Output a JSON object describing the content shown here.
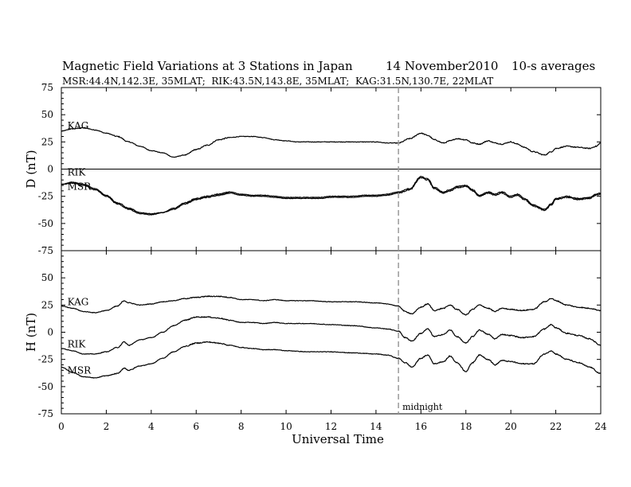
{
  "chart_data": {
    "type": "line",
    "title": "Magnetic Field Variations at 3 Stations in Japan",
    "date": "14 November2010",
    "averaging": "10-s averages",
    "subtitle": "MSR:44.4N,142.3E, 35MLAT;  RIK:43.5N,143.8E, 35MLAT;  KAG:31.5N,130.7E, 22MLAT",
    "xlabel": "Universal Time",
    "xlim": [
      0,
      24
    ],
    "xticks": [
      0,
      2,
      4,
      6,
      8,
      10,
      12,
      14,
      16,
      18,
      20,
      22,
      24
    ],
    "grid": false,
    "annotation": {
      "x": 15,
      "label": "midnight"
    },
    "panels": [
      {
        "ylabel": "D (nT)",
        "ylim": [
          -75,
          75
        ],
        "yticks": [
          75,
          50,
          25,
          0,
          -25,
          -50,
          -75
        ],
        "zero_line": true,
        "labels": [
          {
            "text": "KAG",
            "x": 0.2,
            "y": 37
          },
          {
            "text": "RIK",
            "x": 0.2,
            "y": -6
          },
          {
            "text": "MSR",
            "x": 0.2,
            "y": -19
          }
        ],
        "series": [
          {
            "name": "KAG",
            "x": [
              0,
              0.5,
              1,
              1.5,
              2,
              2.5,
              3,
              3.5,
              4,
              4.5,
              5,
              5.5,
              6,
              6.5,
              7,
              7.5,
              8,
              8.5,
              9,
              9.5,
              10,
              10.5,
              11,
              11.5,
              12,
              12.5,
              13,
              13.5,
              14,
              14.5,
              15,
              15.5,
              16,
              16.3,
              16.6,
              17,
              17.3,
              17.6,
              18,
              18.3,
              18.6,
              19,
              19.3,
              19.6,
              20,
              20.3,
              20.6,
              21,
              21.5,
              21.8,
              22,
              22.5,
              23,
              23.5,
              23.8,
              24
            ],
            "y": [
              35,
              37,
              38,
              36,
              33,
              30,
              25,
              21,
              17,
              15,
              11,
              13,
              18,
              22,
              27,
              29,
              30,
              30,
              29,
              27,
              26,
              25,
              25,
              25,
              25,
              25,
              25,
              25,
              25,
              24,
              24,
              28,
              33,
              31,
              27,
              24,
              26,
              28,
              27,
              24,
              23,
              26,
              24,
              23,
              25,
              23,
              20,
              16,
              13,
              16,
              19,
              21,
              20,
              19,
              21,
              24
            ]
          },
          {
            "name": "RIK",
            "x": [
              0,
              0.5,
              1,
              1.5,
              2,
              2.5,
              3,
              3.5,
              4,
              4.5,
              5,
              5.5,
              6,
              6.5,
              7,
              7.5,
              8,
              8.5,
              9,
              9.5,
              10,
              10.5,
              11,
              11.5,
              12,
              12.5,
              13,
              13.5,
              14,
              14.5,
              15,
              15.5,
              16,
              16.3,
              16.6,
              17,
              17.3,
              17.6,
              18,
              18.3,
              18.6,
              19,
              19.3,
              19.6,
              20,
              20.3,
              20.6,
              21,
              21.5,
              21.8,
              22,
              22.5,
              23,
              23.5,
              23.8,
              24
            ],
            "y": [
              -14,
              -13,
              -15,
              -19,
              -25,
              -32,
              -37,
              -41,
              -42,
              -40,
              -37,
              -32,
              -28,
              -26,
              -24,
              -22,
              -24,
              -25,
              -25,
              -26,
              -27,
              -27,
              -27,
              -27,
              -26,
              -26,
              -26,
              -25,
              -25,
              -24,
              -22,
              -19,
              -8,
              -10,
              -18,
              -22,
              -20,
              -17,
              -16,
              -20,
              -25,
              -22,
              -24,
              -22,
              -26,
              -24,
              -28,
              -34,
              -38,
              -33,
              -28,
              -26,
              -28,
              -27,
              -24,
              -23
            ]
          },
          {
            "name": "MSR",
            "x": [
              0,
              0.5,
              1,
              1.5,
              2,
              2.5,
              3,
              3.5,
              4,
              4.5,
              5,
              5.5,
              6,
              6.5,
              7,
              7.5,
              8,
              8.5,
              9,
              9.5,
              10,
              10.5,
              11,
              11.5,
              12,
              12.5,
              13,
              13.5,
              14,
              14.5,
              15,
              15.5,
              16,
              16.3,
              16.6,
              17,
              17.3,
              17.6,
              18,
              18.3,
              18.6,
              19,
              19.3,
              19.6,
              20,
              20.3,
              20.6,
              21,
              21.5,
              21.8,
              22,
              22.5,
              23,
              23.5,
              23.8,
              24
            ],
            "y": [
              -14,
              -12,
              -14,
              -18,
              -24,
              -31,
              -36,
              -40,
              -41,
              -40,
              -36,
              -31,
              -27,
              -25,
              -23,
              -21,
              -23,
              -24,
              -24,
              -25,
              -26,
              -26,
              -26,
              -26,
              -25,
              -25,
              -25,
              -24,
              -24,
              -23,
              -21,
              -18,
              -7,
              -9,
              -17,
              -21,
              -19,
              -16,
              -15,
              -19,
              -24,
              -21,
              -23,
              -21,
              -25,
              -23,
              -27,
              -33,
              -37,
              -32,
              -27,
              -25,
              -27,
              -26,
              -23,
              -22
            ]
          }
        ]
      },
      {
        "ylabel": "H (nT)",
        "ylim": [
          -75,
          75
        ],
        "yticks": [
          75,
          50,
          25,
          0,
          -25,
          -50,
          -75
        ],
        "zero_line": false,
        "labels": [
          {
            "text": "KAG",
            "x": 0.2,
            "y": 25
          },
          {
            "text": "RIK",
            "x": 0.2,
            "y": -14
          },
          {
            "text": "MSR",
            "x": 0.2,
            "y": -38
          }
        ],
        "series": [
          {
            "name": "KAG",
            "x": [
              0,
              0.5,
              1,
              1.5,
              2,
              2.5,
              2.8,
              3,
              3.5,
              4,
              4.5,
              5,
              5.5,
              6,
              6.5,
              7,
              7.5,
              8,
              8.5,
              9,
              9.5,
              10,
              11,
              12,
              13,
              14,
              14.5,
              15,
              15.3,
              15.6,
              16,
              16.3,
              16.6,
              17,
              17.3,
              17.6,
              18,
              18.3,
              18.6,
              19,
              19.3,
              19.6,
              20,
              20.5,
              21,
              21.5,
              21.8,
              22,
              22.5,
              23,
              23.5,
              24
            ],
            "y": [
              24,
              22,
              19,
              18,
              20,
              24,
              29,
              27,
              25,
              26,
              28,
              29,
              31,
              32,
              33,
              33,
              32,
              30,
              30,
              29,
              30,
              29,
              29,
              28,
              28,
              27,
              26,
              24,
              19,
              17,
              23,
              26,
              20,
              22,
              25,
              21,
              16,
              21,
              25,
              22,
              19,
              22,
              21,
              20,
              21,
              28,
              31,
              29,
              25,
              23,
              22,
              20
            ]
          },
          {
            "name": "RIK",
            "x": [
              0,
              0.5,
              1,
              1.5,
              2,
              2.5,
              2.8,
              3,
              3.5,
              4,
              4.5,
              5,
              5.5,
              6,
              6.5,
              7,
              7.5,
              8,
              8.5,
              9,
              9.5,
              10,
              11,
              12,
              13,
              14,
              14.5,
              15,
              15.3,
              15.6,
              16,
              16.3,
              16.6,
              17,
              17.3,
              17.6,
              18,
              18.3,
              18.6,
              19,
              19.3,
              19.6,
              20,
              20.5,
              21,
              21.5,
              21.8,
              22,
              22.5,
              23,
              23.5,
              24
            ],
            "y": [
              -15,
              -17,
              -20,
              -20,
              -18,
              -14,
              -9,
              -12,
              -7,
              -5,
              0,
              6,
              11,
              14,
              14,
              13,
              11,
              9,
              9,
              8,
              9,
              8,
              8,
              7,
              6,
              4,
              3,
              1,
              -5,
              -8,
              -1,
              3,
              -4,
              -2,
              2,
              -4,
              -10,
              -4,
              2,
              -2,
              -6,
              -2,
              -3,
              -5,
              -4,
              3,
              7,
              4,
              -1,
              -3,
              -6,
              -12
            ]
          },
          {
            "name": "MSR",
            "x": [
              0,
              0.5,
              1,
              1.5,
              2,
              2.5,
              2.8,
              3,
              3.5,
              4,
              4.5,
              5,
              5.5,
              6,
              6.5,
              7,
              7.5,
              8,
              8.5,
              9,
              9.5,
              10,
              11,
              12,
              13,
              14,
              14.5,
              15,
              15.3,
              15.6,
              16,
              16.3,
              16.6,
              17,
              17.3,
              17.6,
              18,
              18.3,
              18.6,
              19,
              19.3,
              19.6,
              20,
              20.5,
              21,
              21.5,
              21.8,
              22,
              22.5,
              23,
              23.5,
              24
            ],
            "y": [
              -32,
              -37,
              -41,
              -42,
              -40,
              -38,
              -33,
              -35,
              -31,
              -29,
              -24,
              -18,
              -13,
              -10,
              -9,
              -10,
              -12,
              -14,
              -15,
              -16,
              -16,
              -17,
              -18,
              -18,
              -19,
              -20,
              -21,
              -24,
              -28,
              -32,
              -24,
              -21,
              -29,
              -27,
              -22,
              -28,
              -36,
              -28,
              -21,
              -25,
              -30,
              -26,
              -27,
              -29,
              -29,
              -20,
              -17,
              -20,
              -25,
              -28,
              -32,
              -38
            ]
          }
        ]
      }
    ]
  }
}
